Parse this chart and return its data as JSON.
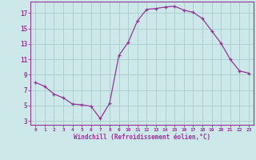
{
  "x": [
    0,
    1,
    2,
    3,
    4,
    5,
    6,
    7,
    8,
    9,
    10,
    11,
    12,
    13,
    14,
    15,
    16,
    17,
    18,
    19,
    20,
    21,
    22,
    23
  ],
  "y": [
    8.0,
    7.5,
    6.5,
    6.0,
    5.2,
    5.1,
    4.9,
    3.3,
    5.3,
    11.5,
    13.2,
    16.0,
    17.5,
    17.6,
    17.8,
    17.9,
    17.4,
    17.1,
    16.3,
    14.7,
    13.1,
    11.0,
    9.5,
    9.2
  ],
  "line_color": "#993399",
  "marker": "+",
  "marker_size": 3,
  "xlabel": "Windchill (Refroidissement éolien,°C)",
  "ylabel_ticks": [
    3,
    5,
    7,
    9,
    11,
    13,
    15,
    17
  ],
  "xtick_labels": [
    "0",
    "1",
    "2",
    "3",
    "4",
    "5",
    "6",
    "7",
    "8",
    "9",
    "1011",
    "1213",
    "1415",
    "1617",
    "1819",
    "2021",
    "2223"
  ],
  "xlim": [
    -0.5,
    23.5
  ],
  "ylim": [
    2.5,
    18.5
  ],
  "bg_color": "#cce8e8",
  "grid_color": "#aacccc",
  "tick_color": "#993399",
  "label_color": "#993399"
}
